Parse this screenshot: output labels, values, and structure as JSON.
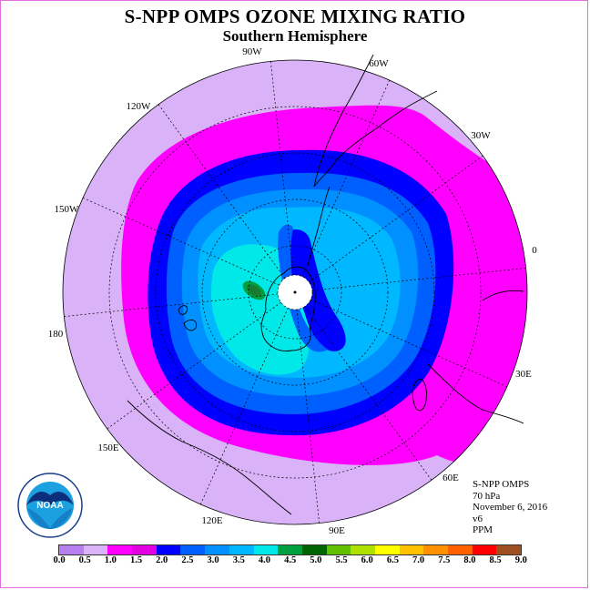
{
  "header": {
    "title": "S-NPP OMPS OZONE MIXING RATIO",
    "subtitle": "Southern Hemisphere"
  },
  "map": {
    "longitude_labels": [
      "90W",
      "60W",
      "30W",
      "0",
      "30E",
      "60E",
      "90E",
      "120E",
      "150E",
      "180",
      "150W",
      "120W"
    ]
  },
  "info": {
    "line1": "S-NPP OMPS",
    "line2": "70 hPa",
    "line3": "November 6, 2016",
    "line4": "v6",
    "line5": "PPM"
  },
  "colorbar": {
    "colors": [
      "#b87ff0",
      "#d9b2f7",
      "#ff00ff",
      "#e000e0",
      "#0000ff",
      "#0060ff",
      "#0090ff",
      "#00b8ff",
      "#00e8e8",
      "#00a040",
      "#006400",
      "#60c000",
      "#b0e000",
      "#ffff00",
      "#ffc000",
      "#ff9000",
      "#ff6000",
      "#ff0000",
      "#a05020"
    ],
    "labels": [
      "0.0",
      "0.5",
      "1.0",
      "1.5",
      "2.0",
      "2.5",
      "3.0",
      "3.5",
      "4.0",
      "4.5",
      "5.0",
      "5.5",
      "6.0",
      "6.5",
      "7.0",
      "7.5",
      "8.0",
      "8.5",
      "9.0"
    ]
  },
  "logo": {
    "text": "NOAA"
  }
}
